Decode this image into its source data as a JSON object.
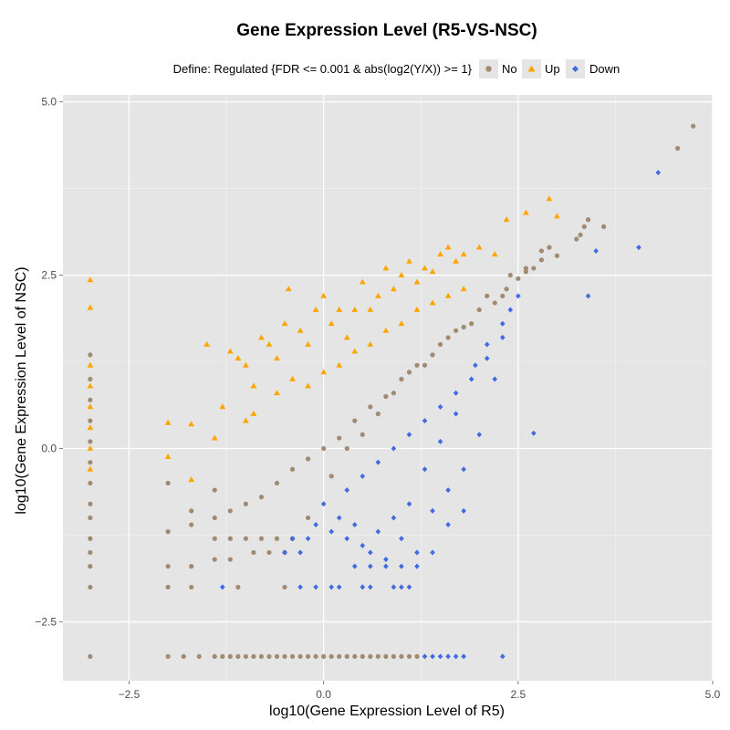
{
  "chart_data": {
    "type": "scatter",
    "title": "Gene Expression Level (R5-VS-NSC)",
    "xlabel": "log10(Gene Expression Level of R5)",
    "ylabel": "log10(Gene Expression Level of NSC)",
    "xlim": [
      -3.35,
      5.0
    ],
    "ylim": [
      -3.35,
      5.1
    ],
    "x_ticks": [
      -2.5,
      0.0,
      2.5,
      5.0
    ],
    "x_tick_labels": [
      "−2.5",
      "0.0",
      "2.5",
      "5.0"
    ],
    "y_ticks": [
      -2.5,
      0.0,
      2.5,
      5.0
    ],
    "y_tick_labels": [
      "−2.5",
      "0.0",
      "2.5",
      "5.0"
    ],
    "grid": true,
    "legend": {
      "position": "top",
      "title": "Define: Regulated {FDR <= 0.001 & abs(log2(Y/X)) >= 1}",
      "entries": [
        "No",
        "Up",
        "Down"
      ]
    },
    "colors": {
      "No": "#a08a72",
      "Up": "#ffa500",
      "Down": "#4169e1",
      "panel": "#e5e5e5",
      "grid": "#ffffff"
    },
    "markers": {
      "No": "circle",
      "Up": "triangle",
      "Down": "diamond"
    },
    "series": [
      {
        "name": "No",
        "points": [
          [
            4.75,
            4.65
          ],
          [
            4.55,
            4.33
          ],
          [
            3.6,
            3.2
          ],
          [
            3.4,
            3.3
          ],
          [
            3.35,
            3.2
          ],
          [
            3.3,
            3.08
          ],
          [
            3.25,
            3.02
          ],
          [
            3.0,
            2.78
          ],
          [
            2.9,
            2.9
          ],
          [
            2.8,
            2.72
          ],
          [
            2.7,
            2.6
          ],
          [
            2.6,
            2.55
          ],
          [
            2.5,
            2.45
          ],
          [
            2.35,
            2.3
          ],
          [
            2.2,
            2.1
          ],
          [
            2.0,
            2.0
          ],
          [
            1.8,
            1.75
          ],
          [
            1.6,
            1.6
          ],
          [
            1.4,
            1.35
          ],
          [
            1.2,
            1.2
          ],
          [
            1.0,
            1.0
          ],
          [
            0.8,
            0.75
          ],
          [
            0.6,
            0.6
          ],
          [
            0.4,
            0.4
          ],
          [
            0.2,
            0.15
          ],
          [
            0.0,
            0.0
          ],
          [
            -0.2,
            -0.15
          ],
          [
            -0.4,
            -0.3
          ],
          [
            -0.6,
            -0.5
          ],
          [
            -0.8,
            -0.7
          ],
          [
            -1.0,
            -0.8
          ],
          [
            -1.2,
            -0.9
          ],
          [
            -3.0,
            1.35
          ],
          [
            -3.0,
            1.0
          ],
          [
            -3.0,
            0.7
          ],
          [
            -3.0,
            0.4
          ],
          [
            -3.0,
            0.1
          ],
          [
            -3.0,
            -0.2
          ],
          [
            -3.0,
            -0.5
          ],
          [
            -3.0,
            -0.8
          ],
          [
            -3.0,
            -1.0
          ],
          [
            -3.0,
            -1.3
          ],
          [
            -3.0,
            -1.5
          ],
          [
            -3.0,
            -1.7
          ],
          [
            -3.0,
            -2.0
          ],
          [
            -3.0,
            -3.0
          ],
          [
            -2.0,
            -3.0
          ],
          [
            -1.8,
            -3.0
          ],
          [
            -1.6,
            -3.0
          ],
          [
            -1.4,
            -3.0
          ],
          [
            -1.3,
            -3.0
          ],
          [
            -1.2,
            -3.0
          ],
          [
            -1.1,
            -3.0
          ],
          [
            -1.0,
            -3.0
          ],
          [
            -0.9,
            -3.0
          ],
          [
            -0.8,
            -3.0
          ],
          [
            -0.7,
            -3.0
          ],
          [
            -0.6,
            -3.0
          ],
          [
            -0.5,
            -3.0
          ],
          [
            -0.4,
            -3.0
          ],
          [
            -0.3,
            -3.0
          ],
          [
            -0.2,
            -3.0
          ],
          [
            -0.1,
            -3.0
          ],
          [
            0.0,
            -3.0
          ],
          [
            0.1,
            -3.0
          ],
          [
            0.2,
            -3.0
          ],
          [
            0.3,
            -3.0
          ],
          [
            0.4,
            -3.0
          ],
          [
            0.5,
            -3.0
          ],
          [
            0.6,
            -3.0
          ],
          [
            0.7,
            -3.0
          ],
          [
            0.8,
            -3.0
          ],
          [
            0.9,
            -3.0
          ],
          [
            1.0,
            -3.0
          ],
          [
            1.1,
            -3.0
          ],
          [
            1.2,
            -3.0
          ],
          [
            -2.0,
            -0.5
          ],
          [
            -2.0,
            -1.2
          ],
          [
            -2.0,
            -1.7
          ],
          [
            -2.0,
            -2.0
          ],
          [
            -1.7,
            -0.9
          ],
          [
            -1.7,
            -1.1
          ],
          [
            -1.7,
            -1.7
          ],
          [
            -1.7,
            -2.0
          ],
          [
            -1.4,
            -0.6
          ],
          [
            -1.4,
            -1.0
          ],
          [
            -1.4,
            -1.3
          ],
          [
            -1.4,
            -1.6
          ],
          [
            -1.2,
            -1.3
          ],
          [
            -1.2,
            -1.6
          ],
          [
            -1.1,
            -2.0
          ],
          [
            -1.0,
            -1.3
          ],
          [
            -0.9,
            -1.5
          ],
          [
            -0.8,
            -1.3
          ],
          [
            -0.7,
            -1.5
          ],
          [
            -0.6,
            -1.3
          ],
          [
            -0.5,
            -1.5
          ],
          [
            -0.4,
            -1.3
          ],
          [
            -0.5,
            -2.0
          ],
          [
            -0.2,
            -1.0
          ],
          [
            0.1,
            -0.4
          ],
          [
            0.3,
            0.0
          ],
          [
            0.5,
            0.2
          ],
          [
            0.7,
            0.5
          ],
          [
            0.9,
            0.8
          ],
          [
            1.1,
            1.1
          ],
          [
            1.3,
            1.2
          ],
          [
            1.5,
            1.5
          ],
          [
            1.7,
            1.7
          ],
          [
            1.9,
            1.8
          ],
          [
            2.1,
            2.2
          ],
          [
            2.3,
            2.2
          ],
          [
            2.4,
            2.5
          ],
          [
            2.6,
            2.6
          ],
          [
            2.8,
            2.85
          ]
        ]
      },
      {
        "name": "Up",
        "points": [
          [
            -3.0,
            2.43
          ],
          [
            -3.0,
            2.03
          ],
          [
            -3.0,
            1.2
          ],
          [
            -3.0,
            0.9
          ],
          [
            -3.0,
            0.6
          ],
          [
            -3.0,
            0.3
          ],
          [
            -3.0,
            0.0
          ],
          [
            -3.0,
            -0.3
          ],
          [
            -2.0,
            0.37
          ],
          [
            -1.7,
            0.35
          ],
          [
            -1.7,
            -0.45
          ],
          [
            -2.0,
            -0.12
          ],
          [
            -1.5,
            1.5
          ],
          [
            -1.4,
            0.15
          ],
          [
            -1.2,
            1.4
          ],
          [
            -1.1,
            1.3
          ],
          [
            -1.0,
            1.2
          ],
          [
            -0.9,
            0.9
          ],
          [
            -0.8,
            1.6
          ],
          [
            -0.7,
            1.5
          ],
          [
            -0.6,
            1.3
          ],
          [
            -0.5,
            1.8
          ],
          [
            -0.45,
            2.3
          ],
          [
            -0.3,
            1.7
          ],
          [
            -0.2,
            1.5
          ],
          [
            -0.1,
            2.0
          ],
          [
            0.0,
            2.2
          ],
          [
            0.1,
            1.8
          ],
          [
            0.2,
            2.0
          ],
          [
            0.3,
            1.6
          ],
          [
            0.4,
            2.0
          ],
          [
            0.5,
            2.4
          ],
          [
            0.6,
            2.0
          ],
          [
            0.7,
            2.2
          ],
          [
            0.8,
            2.6
          ],
          [
            0.9,
            2.3
          ],
          [
            1.0,
            2.5
          ],
          [
            1.1,
            2.7
          ],
          [
            1.2,
            2.4
          ],
          [
            1.3,
            2.6
          ],
          [
            1.4,
            2.55
          ],
          [
            1.5,
            2.8
          ],
          [
            1.6,
            2.9
          ],
          [
            1.7,
            2.7
          ],
          [
            1.8,
            2.8
          ],
          [
            2.0,
            2.9
          ],
          [
            2.2,
            2.8
          ],
          [
            2.35,
            3.3
          ],
          [
            2.6,
            3.4
          ],
          [
            2.9,
            3.6
          ],
          [
            3.0,
            3.35
          ],
          [
            -0.9,
            0.5
          ],
          [
            -0.6,
            0.8
          ],
          [
            -0.4,
            1.0
          ],
          [
            -0.2,
            0.9
          ],
          [
            0.0,
            1.1
          ],
          [
            0.2,
            1.2
          ],
          [
            0.4,
            1.4
          ],
          [
            0.6,
            1.5
          ],
          [
            0.8,
            1.7
          ],
          [
            1.0,
            1.8
          ],
          [
            1.2,
            2.0
          ],
          [
            1.4,
            2.1
          ],
          [
            1.6,
            2.2
          ],
          [
            1.8,
            2.3
          ],
          [
            -1.0,
            0.4
          ],
          [
            -1.3,
            0.6
          ]
        ]
      },
      {
        "name": "Down",
        "points": [
          [
            4.3,
            3.98
          ],
          [
            4.05,
            2.9
          ],
          [
            3.5,
            2.85
          ],
          [
            3.4,
            2.2
          ],
          [
            2.7,
            0.22
          ],
          [
            2.3,
            -3.0
          ],
          [
            2.5,
            2.2
          ],
          [
            2.4,
            2.0
          ],
          [
            2.3,
            1.8
          ],
          [
            2.2,
            1.0
          ],
          [
            2.1,
            1.5
          ],
          [
            2.0,
            0.2
          ],
          [
            1.95,
            1.2
          ],
          [
            1.8,
            -0.3
          ],
          [
            1.7,
            0.5
          ],
          [
            1.6,
            -0.6
          ],
          [
            1.5,
            0.1
          ],
          [
            1.4,
            -0.9
          ],
          [
            1.3,
            -0.3
          ],
          [
            1.2,
            -1.5
          ],
          [
            1.1,
            -0.8
          ],
          [
            1.0,
            -1.3
          ],
          [
            0.9,
            -1.0
          ],
          [
            0.8,
            -1.6
          ],
          [
            0.7,
            -1.2
          ],
          [
            0.6,
            -1.5
          ],
          [
            0.5,
            -1.4
          ],
          [
            0.4,
            -1.1
          ],
          [
            0.3,
            -1.3
          ],
          [
            0.2,
            -1.0
          ],
          [
            0.1,
            -1.2
          ],
          [
            0.0,
            -0.8
          ],
          [
            -0.1,
            -1.1
          ],
          [
            -0.2,
            -1.3
          ],
          [
            -0.3,
            -1.5
          ],
          [
            -0.4,
            -1.3
          ],
          [
            -0.5,
            -1.5
          ],
          [
            -1.3,
            -2.0
          ],
          [
            -0.3,
            -2.0
          ],
          [
            -0.1,
            -2.0
          ],
          [
            0.1,
            -2.0
          ],
          [
            0.2,
            -2.0
          ],
          [
            0.5,
            -2.0
          ],
          [
            0.6,
            -2.0
          ],
          [
            0.9,
            -2.0
          ],
          [
            1.0,
            -2.0
          ],
          [
            1.1,
            -2.0
          ],
          [
            1.3,
            -3.0
          ],
          [
            1.4,
            -3.0
          ],
          [
            1.5,
            -3.0
          ],
          [
            1.6,
            -3.0
          ],
          [
            1.7,
            -3.0
          ],
          [
            1.8,
            -3.0
          ],
          [
            0.4,
            -1.7
          ],
          [
            0.6,
            -1.7
          ],
          [
            0.8,
            -1.7
          ],
          [
            1.0,
            -1.7
          ],
          [
            1.2,
            -1.7
          ],
          [
            0.3,
            -0.6
          ],
          [
            0.5,
            -0.4
          ],
          [
            0.7,
            -0.2
          ],
          [
            0.9,
            0.0
          ],
          [
            1.1,
            0.2
          ],
          [
            1.3,
            0.4
          ],
          [
            1.5,
            0.6
          ],
          [
            1.7,
            0.8
          ],
          [
            1.9,
            1.0
          ],
          [
            2.1,
            1.3
          ],
          [
            2.3,
            1.6
          ],
          [
            1.4,
            -1.5
          ],
          [
            1.6,
            -1.1
          ],
          [
            1.8,
            -0.9
          ]
        ]
      }
    ]
  }
}
